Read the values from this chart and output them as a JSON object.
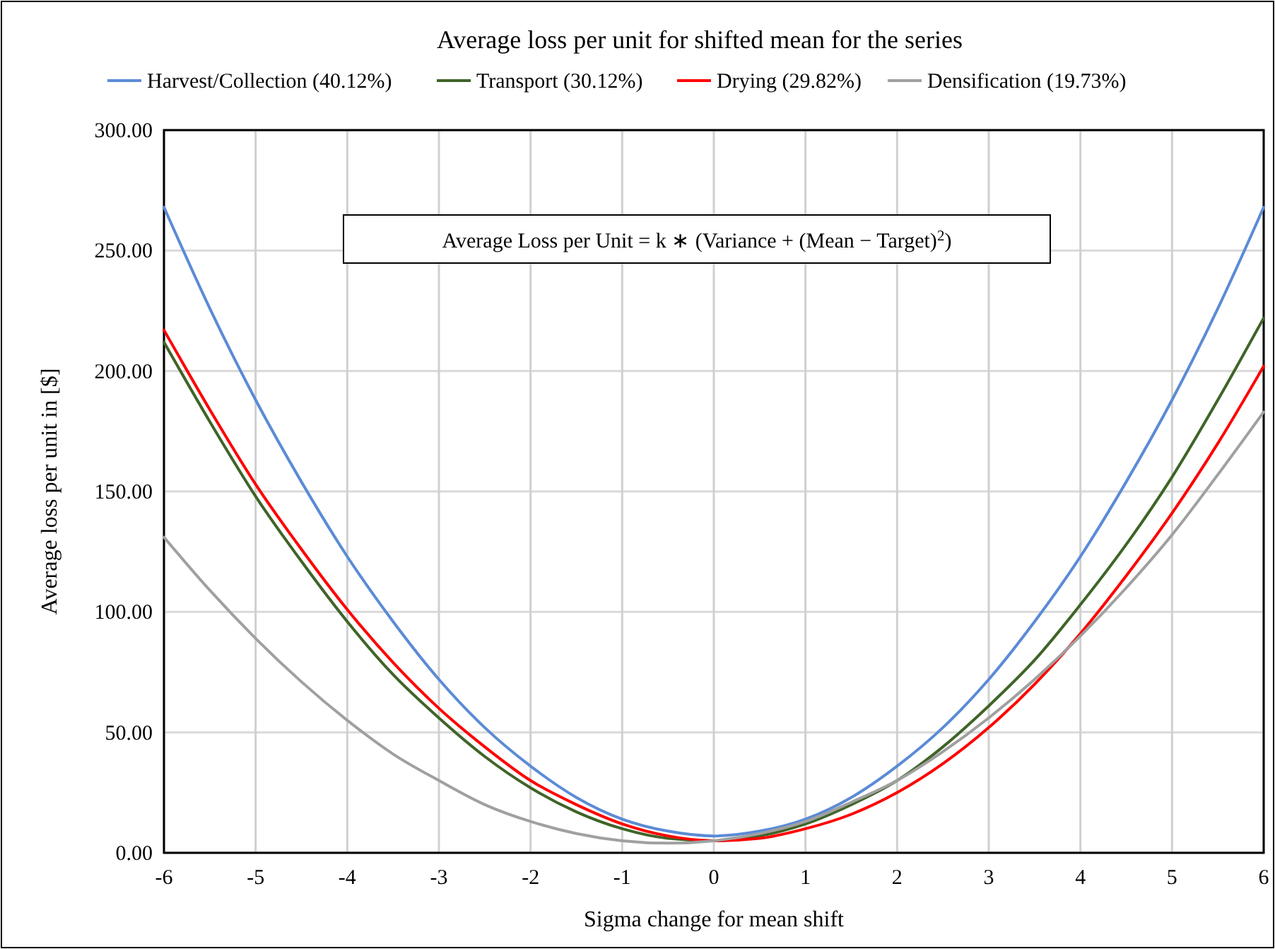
{
  "chart_data": {
    "type": "line",
    "title": "Average loss per unit for shifted mean for the series",
    "xlabel": "Sigma change for mean shift",
    "ylabel": "Average loss per unit in [$]",
    "x": [
      -6,
      -5.5,
      -5,
      -4.5,
      -4,
      -3.5,
      -3,
      -2.5,
      -2,
      -1.5,
      -1,
      -0.5,
      0,
      0.5,
      1,
      1.5,
      2,
      2.5,
      3,
      3.5,
      4,
      4.5,
      5,
      5.5,
      6
    ],
    "series": [
      {
        "name": "Harvest/Collection (40.12%)",
        "color": "#5b8bd6",
        "values": [
          268,
          226,
          188,
          154,
          123,
          96,
          72,
          52,
          36,
          23,
          14,
          9,
          7,
          9,
          14,
          23,
          36,
          52,
          72,
          96,
          123,
          154,
          188,
          226,
          268
        ]
      },
      {
        "name": "Transport (30.12%)",
        "color": "#3f6428",
        "values": [
          212,
          179,
          148,
          121,
          96,
          74,
          56,
          40,
          27,
          17,
          10,
          6,
          5,
          7,
          12,
          20,
          30,
          44,
          61,
          80,
          103,
          128,
          156,
          188,
          222
        ]
      },
      {
        "name": "Drying (29.82%)",
        "color": "#ff0000",
        "values": [
          217,
          184,
          153,
          126,
          101,
          79,
          60,
          44,
          30,
          20,
          12,
          7,
          5,
          6,
          10,
          16,
          25,
          37,
          52,
          70,
          91,
          115,
          141,
          170,
          202
        ]
      },
      {
        "name": "Densification (19.73%)",
        "color": "#a0a0a0",
        "values": [
          131,
          109,
          89,
          71,
          55,
          41,
          30,
          20,
          13,
          8,
          5,
          4,
          5,
          8,
          13,
          21,
          30,
          42,
          56,
          72,
          90,
          110,
          132,
          157,
          183
        ]
      }
    ],
    "xlim": [
      -6,
      6
    ],
    "xticks": [
      -6,
      -5,
      -4,
      -3,
      -2,
      -1,
      0,
      1,
      2,
      3,
      4,
      5,
      6
    ],
    "ylim": [
      0,
      300
    ],
    "yticks": [
      {
        "value": 0,
        "label": "0.00"
      },
      {
        "value": 50,
        "label": "50.00"
      },
      {
        "value": 100,
        "label": "100.00"
      },
      {
        "value": 150,
        "label": "150.00"
      },
      {
        "value": 200,
        "label": "200.00"
      },
      {
        "value": 250,
        "label": "250.00"
      },
      {
        "value": 300,
        "label": "300.00"
      }
    ],
    "grid": true,
    "legend": "top",
    "marker": "none",
    "line_style": "solid",
    "annotations": [
      "Average Loss per Unit = k ∗ (Variance  + (Mean − Target)$^{2}$)"
    ]
  }
}
